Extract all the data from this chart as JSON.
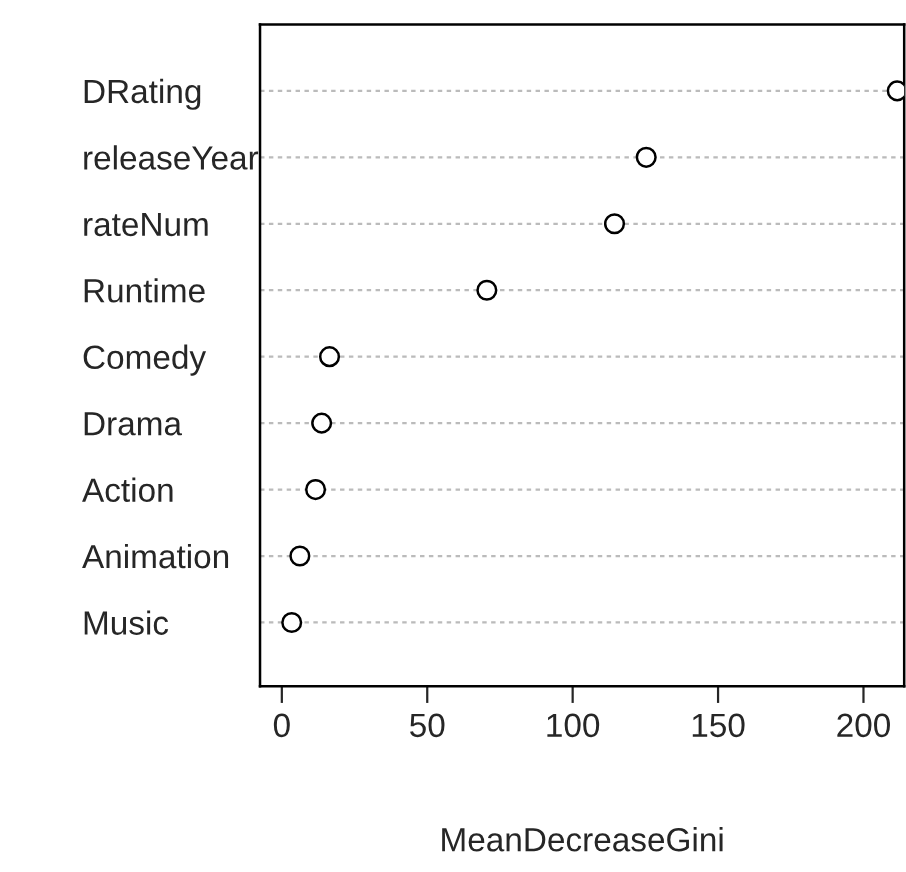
{
  "chart_data": {
    "type": "scatter",
    "orientation": "horizontal",
    "xlabel": "MeanDecreaseGini",
    "categories": [
      "DRating",
      "releaseYear",
      "rateNum",
      "Runtime",
      "Comedy",
      "Drama",
      "Action",
      "Animation",
      "Music"
    ],
    "values": [
      211.6,
      125.3,
      114.4,
      70.5,
      16.4,
      13.7,
      11.6,
      6.2,
      3.4
    ],
    "xlim": [
      -7.5,
      214
    ],
    "xticks": [
      0,
      50,
      100,
      150,
      200
    ],
    "grid": "y",
    "marker": "circle"
  }
}
